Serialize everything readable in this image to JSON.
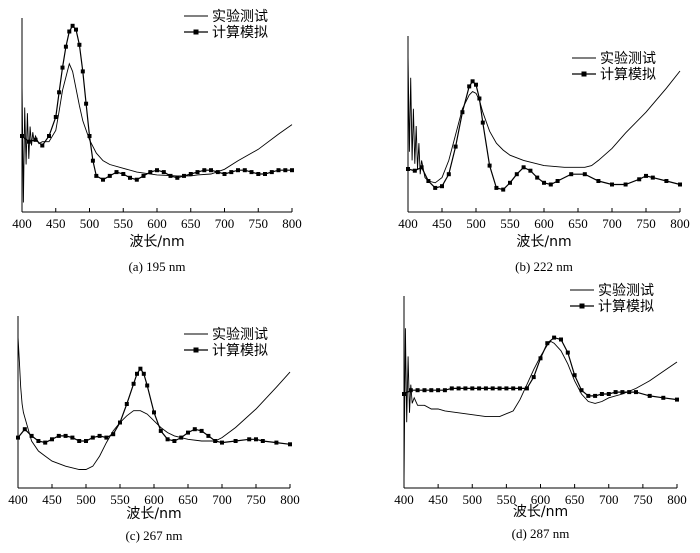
{
  "chart_data": [
    {
      "type": "line",
      "caption": "(a) 195 nm",
      "xlabel": "波长/nm",
      "ylabel": "",
      "xlim": [
        400,
        800
      ],
      "ylim": [
        0,
        1
      ],
      "x_ticks": [
        400,
        450,
        500,
        550,
        600,
        650,
        700,
        750,
        800
      ],
      "legend_position": "top-right",
      "series": [
        {
          "name": "实验测试",
          "marker": "none",
          "x": [
            400,
            402,
            404,
            406,
            408,
            410,
            412,
            414,
            416,
            418,
            420,
            425,
            430,
            440,
            450,
            455,
            460,
            465,
            470,
            475,
            480,
            485,
            490,
            500,
            510,
            520,
            530,
            550,
            570,
            600,
            630,
            650,
            660,
            680,
            700,
            720,
            750,
            780,
            800
          ],
          "values": [
            0.68,
            0.05,
            0.55,
            0.25,
            0.52,
            0.28,
            0.45,
            0.35,
            0.42,
            0.37,
            0.4,
            0.36,
            0.37,
            0.37,
            0.43,
            0.53,
            0.64,
            0.71,
            0.78,
            0.74,
            0.65,
            0.56,
            0.48,
            0.38,
            0.31,
            0.27,
            0.25,
            0.23,
            0.21,
            0.195,
            0.19,
            0.19,
            0.195,
            0.2,
            0.225,
            0.27,
            0.33,
            0.41,
            0.46
          ]
        },
        {
          "name": "计算模拟",
          "marker": "square",
          "x": [
            400,
            410,
            420,
            430,
            440,
            450,
            455,
            460,
            465,
            470,
            475,
            480,
            485,
            490,
            495,
            500,
            505,
            510,
            520,
            530,
            540,
            550,
            560,
            570,
            580,
            590,
            600,
            610,
            620,
            630,
            640,
            650,
            660,
            670,
            680,
            690,
            700,
            710,
            720,
            730,
            740,
            750,
            760,
            770,
            780,
            790,
            800
          ],
          "values": [
            0.4,
            0.37,
            0.38,
            0.35,
            0.4,
            0.5,
            0.63,
            0.76,
            0.87,
            0.95,
            0.98,
            0.96,
            0.88,
            0.74,
            0.57,
            0.4,
            0.27,
            0.19,
            0.17,
            0.19,
            0.21,
            0.2,
            0.18,
            0.17,
            0.19,
            0.21,
            0.22,
            0.21,
            0.19,
            0.18,
            0.19,
            0.2,
            0.21,
            0.22,
            0.22,
            0.21,
            0.2,
            0.21,
            0.22,
            0.22,
            0.21,
            0.2,
            0.2,
            0.21,
            0.22,
            0.22,
            0.22
          ]
        }
      ]
    },
    {
      "type": "line",
      "caption": "(b) 222 nm",
      "xlabel": "波长/nm",
      "ylabel": "",
      "xlim": [
        400,
        800
      ],
      "ylim": [
        0,
        1
      ],
      "x_ticks": [
        400,
        450,
        500,
        550,
        600,
        650,
        700,
        750,
        800
      ],
      "legend_position": "top-right",
      "series": [
        {
          "name": "实验测试",
          "marker": "none",
          "x": [
            400,
            402,
            404,
            406,
            408,
            410,
            412,
            414,
            416,
            418,
            420,
            425,
            430,
            440,
            450,
            460,
            470,
            480,
            490,
            495,
            500,
            505,
            510,
            520,
            530,
            540,
            550,
            570,
            600,
            630,
            660,
            670,
            680,
            700,
            720,
            750,
            780,
            800
          ],
          "values": [
            0.92,
            0.35,
            0.78,
            0.3,
            0.6,
            0.28,
            0.5,
            0.25,
            0.4,
            0.22,
            0.3,
            0.2,
            0.18,
            0.17,
            0.2,
            0.3,
            0.45,
            0.6,
            0.68,
            0.7,
            0.69,
            0.65,
            0.58,
            0.47,
            0.4,
            0.36,
            0.33,
            0.3,
            0.27,
            0.26,
            0.26,
            0.27,
            0.3,
            0.37,
            0.46,
            0.58,
            0.72,
            0.82
          ]
        },
        {
          "name": "计算模拟",
          "marker": "square",
          "x": [
            400,
            410,
            420,
            430,
            440,
            450,
            460,
            470,
            480,
            490,
            495,
            500,
            505,
            510,
            520,
            530,
            540,
            550,
            560,
            570,
            580,
            590,
            600,
            610,
            620,
            640,
            660,
            680,
            700,
            720,
            740,
            750,
            760,
            780,
            800
          ],
          "values": [
            0.25,
            0.24,
            0.26,
            0.18,
            0.14,
            0.15,
            0.22,
            0.38,
            0.58,
            0.73,
            0.76,
            0.74,
            0.66,
            0.52,
            0.27,
            0.14,
            0.13,
            0.17,
            0.22,
            0.26,
            0.24,
            0.2,
            0.17,
            0.16,
            0.18,
            0.22,
            0.22,
            0.18,
            0.16,
            0.16,
            0.19,
            0.21,
            0.2,
            0.18,
            0.16
          ]
        }
      ]
    },
    {
      "type": "line",
      "caption": "(c) 267 nm",
      "xlabel": "波长/nm",
      "ylabel": "",
      "xlim": [
        400,
        800
      ],
      "ylim": [
        0,
        1
      ],
      "x_ticks": [
        400,
        450,
        500,
        550,
        600,
        650,
        700,
        750,
        800
      ],
      "legend_position": "top-right",
      "series": [
        {
          "name": "实验测试",
          "marker": "none",
          "x": [
            400,
            402,
            404,
            406,
            408,
            410,
            415,
            420,
            430,
            440,
            450,
            470,
            490,
            500,
            510,
            520,
            530,
            540,
            550,
            560,
            570,
            580,
            590,
            600,
            610,
            620,
            630,
            650,
            670,
            690,
            700,
            720,
            750,
            780,
            800
          ],
          "values": [
            0.9,
            0.75,
            0.6,
            0.5,
            0.45,
            0.42,
            0.35,
            0.28,
            0.22,
            0.19,
            0.16,
            0.13,
            0.11,
            0.11,
            0.13,
            0.19,
            0.27,
            0.34,
            0.39,
            0.43,
            0.46,
            0.46,
            0.44,
            0.4,
            0.36,
            0.33,
            0.31,
            0.29,
            0.28,
            0.28,
            0.3,
            0.36,
            0.47,
            0.6,
            0.69
          ]
        },
        {
          "name": "计算模拟",
          "marker": "square",
          "x": [
            400,
            410,
            420,
            430,
            440,
            450,
            460,
            470,
            480,
            490,
            500,
            510,
            520,
            530,
            540,
            550,
            560,
            570,
            575,
            580,
            585,
            590,
            600,
            610,
            620,
            630,
            640,
            650,
            660,
            670,
            680,
            690,
            700,
            720,
            740,
            750,
            760,
            780,
            800
          ],
          "values": [
            0.3,
            0.35,
            0.31,
            0.28,
            0.27,
            0.29,
            0.31,
            0.31,
            0.3,
            0.28,
            0.28,
            0.3,
            0.31,
            0.3,
            0.32,
            0.39,
            0.5,
            0.62,
            0.68,
            0.71,
            0.68,
            0.61,
            0.45,
            0.34,
            0.29,
            0.28,
            0.3,
            0.33,
            0.35,
            0.34,
            0.31,
            0.28,
            0.27,
            0.28,
            0.29,
            0.29,
            0.28,
            0.27,
            0.26
          ]
        }
      ]
    },
    {
      "type": "line",
      "caption": "(d) 287 nm",
      "xlabel": "波长/nm",
      "ylabel": "",
      "xlim": [
        400,
        800
      ],
      "ylim": [
        0,
        1
      ],
      "x_ticks": [
        400,
        450,
        500,
        550,
        600,
        650,
        700,
        750,
        800
      ],
      "legend_position": "top-right",
      "series": [
        {
          "name": "实验测试",
          "marker": "none",
          "x": [
            400,
            402,
            404,
            406,
            408,
            410,
            412,
            415,
            420,
            430,
            440,
            450,
            460,
            480,
            500,
            520,
            540,
            560,
            570,
            580,
            590,
            600,
            610,
            615,
            620,
            630,
            640,
            650,
            660,
            670,
            680,
            690,
            700,
            720,
            740,
            760,
            780,
            800
          ],
          "values": [
            0.02,
            0.85,
            0.35,
            0.7,
            0.4,
            0.55,
            0.45,
            0.48,
            0.44,
            0.44,
            0.42,
            0.42,
            0.41,
            0.4,
            0.39,
            0.38,
            0.38,
            0.41,
            0.47,
            0.55,
            0.63,
            0.7,
            0.76,
            0.78,
            0.77,
            0.73,
            0.66,
            0.57,
            0.5,
            0.46,
            0.45,
            0.46,
            0.48,
            0.5,
            0.53,
            0.57,
            0.62,
            0.67
          ]
        },
        {
          "name": "计算模拟",
          "marker": "square",
          "x": [
            400,
            410,
            420,
            430,
            440,
            450,
            460,
            470,
            480,
            490,
            500,
            510,
            520,
            530,
            540,
            550,
            560,
            570,
            580,
            590,
            600,
            610,
            620,
            630,
            640,
            650,
            660,
            670,
            680,
            690,
            700,
            710,
            720,
            730,
            740,
            760,
            780,
            800
          ],
          "values": [
            0.5,
            0.52,
            0.52,
            0.52,
            0.52,
            0.52,
            0.52,
            0.53,
            0.53,
            0.53,
            0.53,
            0.53,
            0.53,
            0.53,
            0.53,
            0.53,
            0.53,
            0.53,
            0.53,
            0.59,
            0.69,
            0.77,
            0.8,
            0.79,
            0.72,
            0.6,
            0.52,
            0.49,
            0.49,
            0.5,
            0.5,
            0.51,
            0.51,
            0.51,
            0.51,
            0.49,
            0.48,
            0.47
          ]
        }
      ]
    }
  ]
}
